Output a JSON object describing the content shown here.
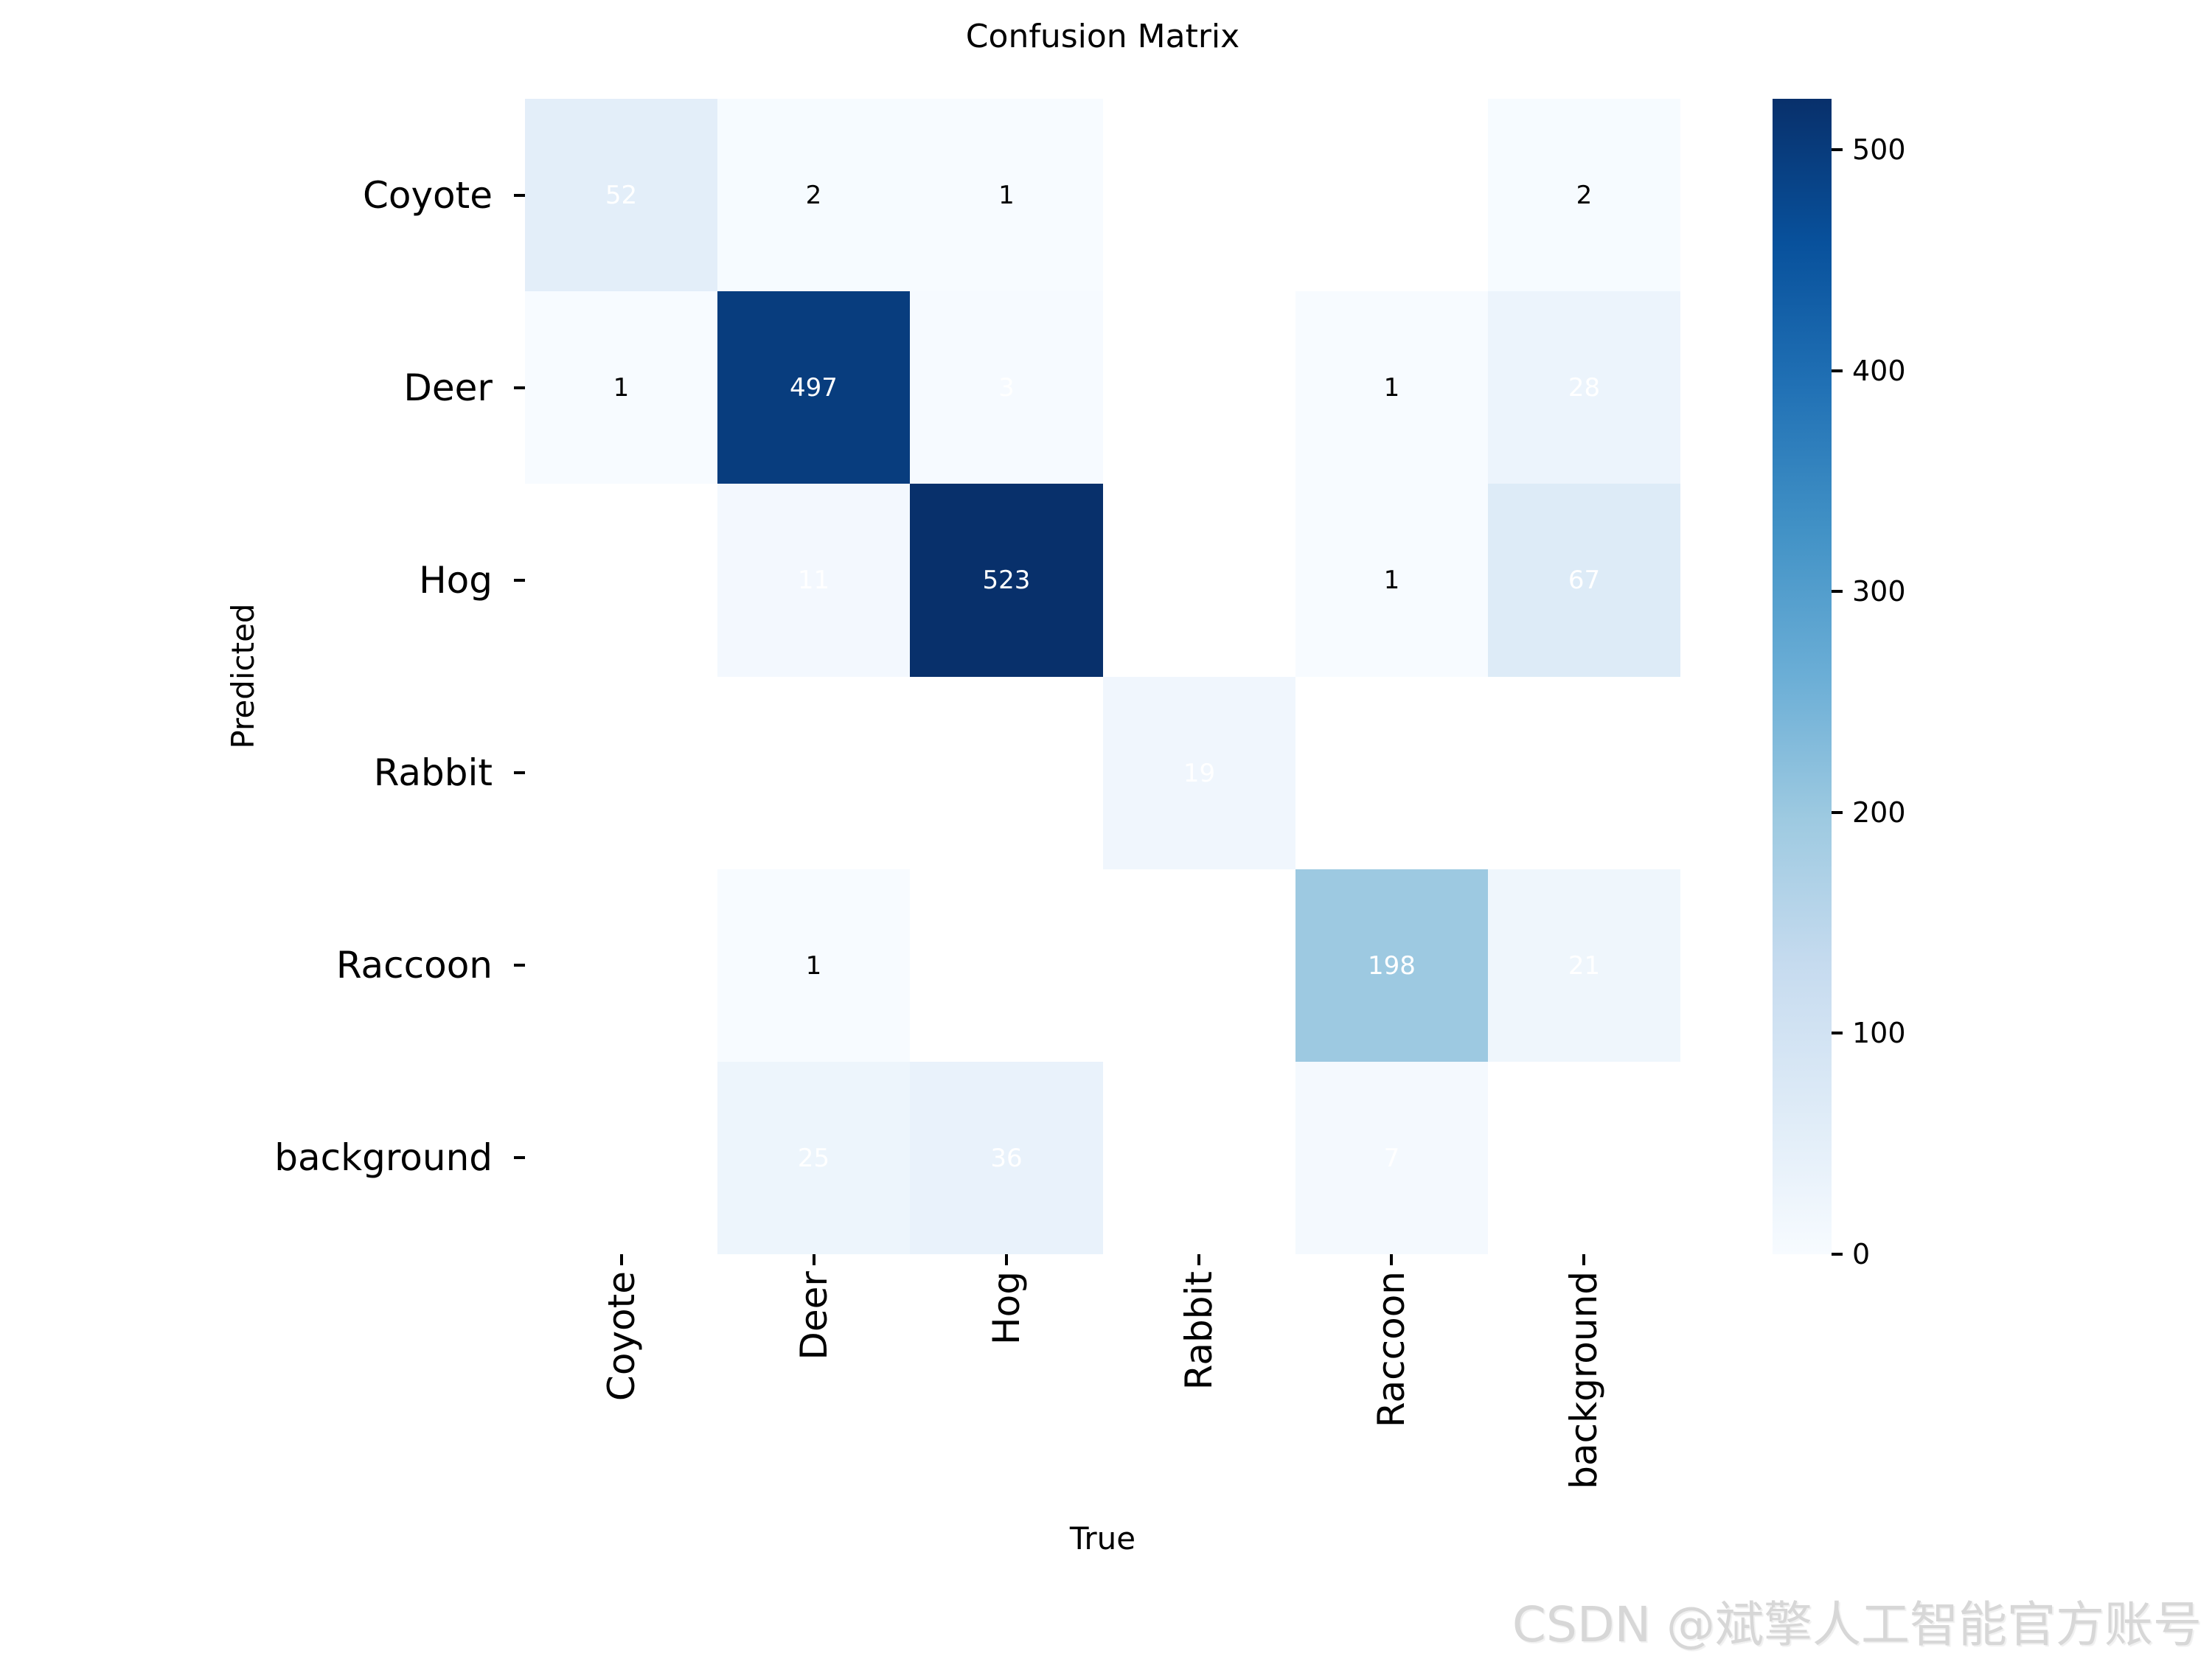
{
  "title": "Confusion Matrix",
  "watermark": "CSDN @斌擎人工智能官方账号",
  "chart_data": {
    "type": "heatmap",
    "title": "Confusion Matrix",
    "x_axis_label": "True",
    "y_axis_label": "Predicted",
    "classes": [
      "Coyote",
      "Deer",
      "Hog",
      "Rabbit",
      "Raccoon",
      "background"
    ],
    "matrix": [
      [
        52,
        2,
        1,
        null,
        null,
        2
      ],
      [
        1,
        497,
        3,
        null,
        1,
        28
      ],
      [
        null,
        11,
        523,
        null,
        1,
        67
      ],
      [
        null,
        null,
        null,
        19,
        null,
        null
      ],
      [
        null,
        1,
        null,
        null,
        198,
        21
      ],
      [
        null,
        25,
        36,
        null,
        7,
        null
      ]
    ],
    "vmin": 0,
    "vmax": 523,
    "colorbar_ticks": [
      0,
      100,
      200,
      300,
      400,
      500
    ],
    "colormap": "Blues",
    "colormap_stops": [
      "#f7fbff",
      "#deebf7",
      "#c6dbef",
      "#9ecae1",
      "#6baed6",
      "#4292c6",
      "#2171b5",
      "#08519c",
      "#08306b"
    ],
    "masked_color": "#ffffff",
    "annot_white_threshold": 3,
    "annot_white_color": "#ffffff",
    "annot_black_color": "#000000",
    "legend_position": "right",
    "grid": false
  }
}
